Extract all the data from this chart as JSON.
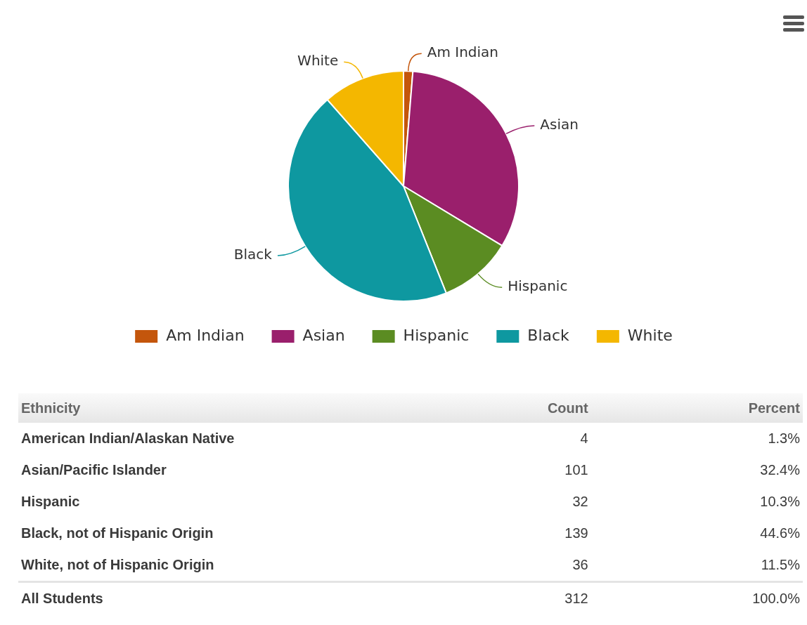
{
  "chart_data": [
    {
      "type": "pie",
      "categories": [
        "Am Indian",
        "Asian",
        "Hispanic",
        "Black",
        "White"
      ],
      "values": [
        1.3,
        32.4,
        10.3,
        44.6,
        11.5
      ],
      "colors": [
        "#c4560c",
        "#9a1f6c",
        "#5b8c22",
        "#0e98a0",
        "#f4b700"
      ],
      "legend": "bottom"
    },
    {
      "type": "other",
      "annotations": [
        "Ethnicity",
        "Count",
        "Percent",
        "American Indian/Alaskan Native",
        "4",
        "1.3%",
        "Asian/Pacific Islander",
        "101",
        "32.4%",
        "Hispanic",
        "32",
        "10.3%",
        "Black, not of Hispanic Origin",
        "139",
        "44.6%",
        "White, not of Hispanic Origin",
        "36",
        "11.5%",
        "All Students",
        "312",
        "100.0%"
      ]
    }
  ]
}
